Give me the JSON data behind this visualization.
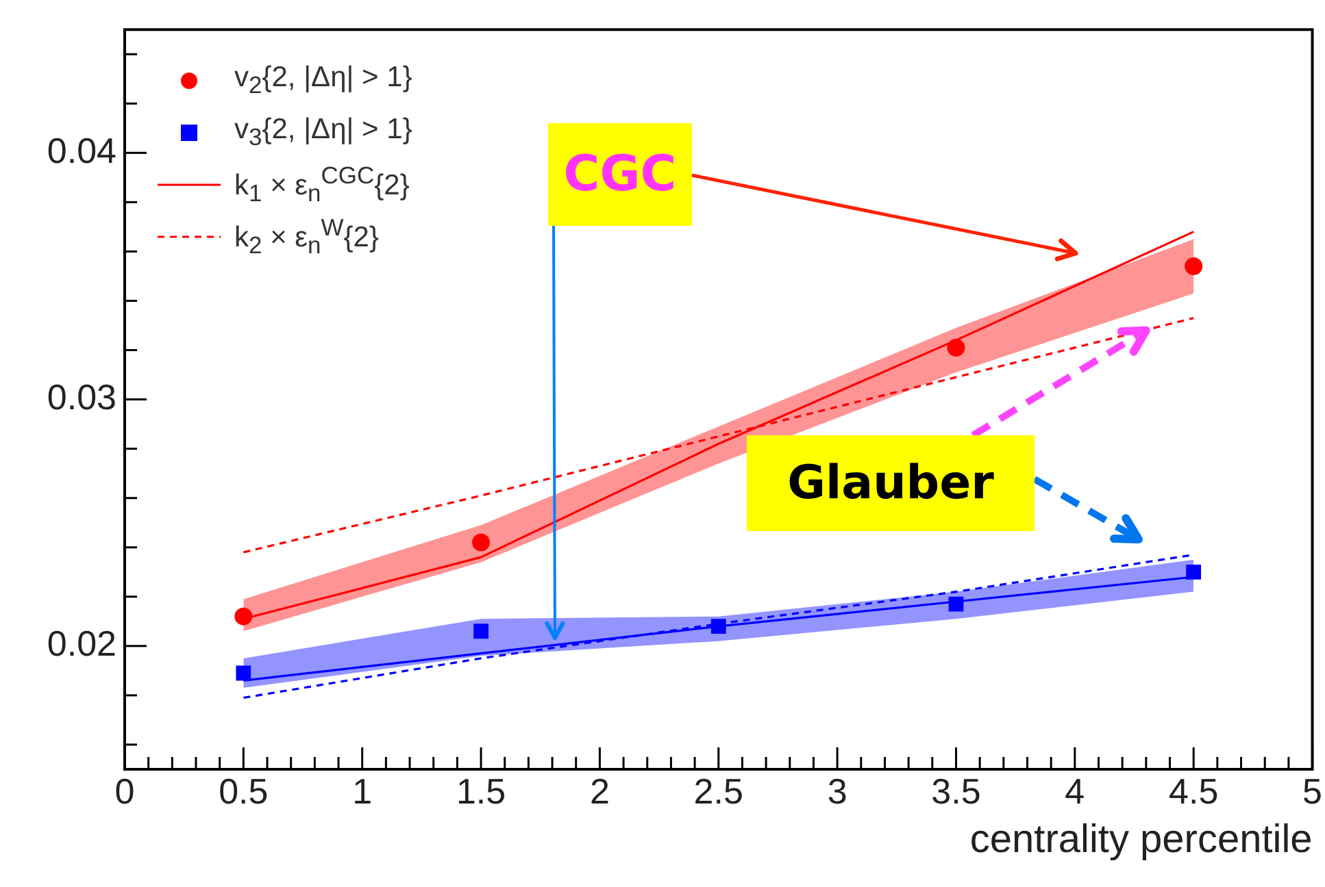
{
  "chart_data": {
    "type": "line",
    "xlabel": "centrality percentile",
    "x": [
      0.5,
      1.5,
      2.5,
      3.5,
      4.5
    ],
    "xlim": [
      0,
      5
    ],
    "xticks": [
      0,
      {
        "value": 0.1,
        "label": null
      },
      {
        "value": 0.2,
        "label": null
      },
      {
        "value": 0.3,
        "label": null
      },
      {
        "value": 0.4,
        "label": null
      },
      0.5,
      {
        "value": 0.6,
        "label": null
      },
      {
        "value": 0.7,
        "label": null
      },
      {
        "value": 0.8,
        "label": null
      },
      {
        "value": 0.9,
        "label": null
      },
      1,
      {
        "value": 1.1,
        "label": null
      },
      {
        "value": 1.2,
        "label": null
      },
      {
        "value": 1.3,
        "label": null
      },
      {
        "value": 1.4,
        "label": null
      },
      1.5,
      {
        "value": 1.6,
        "label": null
      },
      {
        "value": 1.7,
        "label": null
      },
      {
        "value": 1.8,
        "label": null
      },
      {
        "value": 1.9,
        "label": null
      },
      2,
      {
        "value": 2.1,
        "label": null
      },
      {
        "value": 2.2,
        "label": null
      },
      {
        "value": 2.3,
        "label": null
      },
      {
        "value": 2.4,
        "label": null
      },
      2.5,
      {
        "value": 2.6,
        "label": null
      },
      {
        "value": 2.7,
        "label": null
      },
      {
        "value": 2.8,
        "label": null
      },
      {
        "value": 2.9,
        "label": null
      },
      3,
      {
        "value": 3.1,
        "label": null
      },
      {
        "value": 3.2,
        "label": null
      },
      {
        "value": 3.3,
        "label": null
      },
      {
        "value": 3.4,
        "label": null
      },
      3.5,
      {
        "value": 3.6,
        "label": null
      },
      {
        "value": 3.7,
        "label": null
      },
      {
        "value": 3.8,
        "label": null
      },
      {
        "value": 3.9,
        "label": null
      },
      4,
      {
        "value": 4.1,
        "label": null
      },
      {
        "value": 4.2,
        "label": null
      },
      {
        "value": 4.3,
        "label": null
      },
      {
        "value": 4.4,
        "label": null
      },
      4.5,
      {
        "value": 4.6,
        "label": null
      },
      {
        "value": 4.7,
        "label": null
      },
      {
        "value": 4.8,
        "label": null
      },
      {
        "value": 4.9,
        "label": null
      },
      5
    ],
    "ylim": [
      0.015,
      0.045
    ],
    "yticks": [
      {
        "value": 0.016,
        "label": null
      },
      {
        "value": 0.018,
        "label": null
      },
      0.02,
      {
        "value": 0.022,
        "label": null
      },
      {
        "value": 0.024,
        "label": null
      },
      {
        "value": 0.026,
        "label": null
      },
      {
        "value": 0.028,
        "label": null
      },
      0.03,
      {
        "value": 0.032,
        "label": null
      },
      {
        "value": 0.034,
        "label": null
      },
      {
        "value": 0.036,
        "label": null
      },
      {
        "value": 0.038,
        "label": null
      },
      0.04,
      {
        "value": 0.042,
        "label": null
      },
      {
        "value": 0.044,
        "label": null
      }
    ],
    "grid": false,
    "legend": "top left",
    "series": [
      {
        "name": "v$_{2}${2, |Δη| > 1}",
        "type": "scatter",
        "marker": "circle",
        "color": "#ff0000",
        "values": [
          0.0212,
          0.0242,
          null,
          0.0321,
          0.0354
        ]
      },
      {
        "name": "v$_{3}${2, |Δη| > 1}",
        "type": "scatter",
        "marker": "square",
        "color": "#0000ff",
        "values": [
          0.0189,
          0.0206,
          0.0208,
          0.0217,
          0.023
        ]
      },
      {
        "name": "k$_{1}$ × ε$_{n}$$^{CGC}${2}",
        "line_style": "solid",
        "color": "#ff0000",
        "values": [
          0.0211,
          0.0236,
          0.0282,
          0.0324,
          0.0368
        ],
        "lower": [
          0.0206,
          0.0234,
          0.0274,
          0.0311,
          0.0343
        ],
        "upper": [
          0.0219,
          0.0249,
          0.0289,
          0.0329,
          0.0365
        ]
      },
      {
        "name": "k$_{2}$ × ε$_{n}$$^{W}${2}",
        "line_style": "dashed",
        "color": "#ff0000",
        "values": [
          0.0238,
          0.0261,
          0.0285,
          0.0309,
          0.0333
        ]
      },
      {
        "line_style": "solid",
        "color": "#0000ff",
        "values": [
          0.0186,
          0.0197,
          0.0208,
          0.0218,
          0.0228
        ],
        "lower": [
          0.0183,
          0.0196,
          0.0202,
          0.0211,
          0.0222
        ],
        "upper": [
          0.0195,
          0.0211,
          0.0212,
          0.0222,
          0.0235
        ]
      },
      {
        "line_style": "dashed",
        "color": "#0000ff",
        "values": [
          0.0179,
          0.0195,
          0.0209,
          0.0222,
          0.0237
        ]
      }
    ],
    "annotations": [
      "CGC",
      {
        "text": "Glauber",
        "x": 4.3,
        "y": 0.0328
      }
    ]
  }
}
